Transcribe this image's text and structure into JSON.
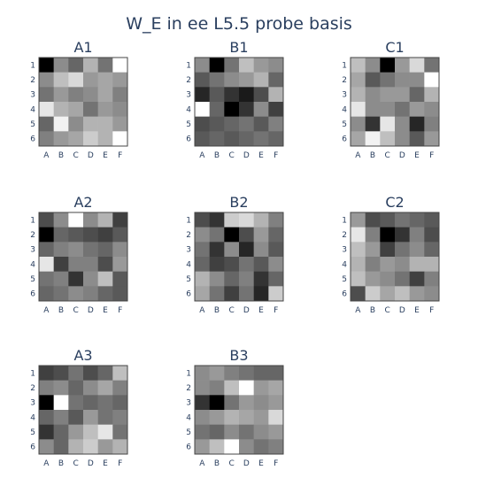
{
  "title": "W_E in ee L5.5 probe basis",
  "chart_data": [
    {
      "type": "heatmap",
      "title": "A1",
      "x_categories": [
        "A",
        "B",
        "C",
        "D",
        "E",
        "F"
      ],
      "y_categories": [
        "1",
        "2",
        "3",
        "4",
        "5",
        "6"
      ],
      "values": [
        [
          0.0,
          0.55,
          0.4,
          0.7,
          0.45,
          1.0
        ],
        [
          0.55,
          0.75,
          0.85,
          0.6,
          0.65,
          0.6
        ],
        [
          0.45,
          0.6,
          0.5,
          0.55,
          0.65,
          0.5
        ],
        [
          0.9,
          0.7,
          0.65,
          0.45,
          0.6,
          0.55
        ],
        [
          0.4,
          0.95,
          0.55,
          0.7,
          0.7,
          0.6
        ],
        [
          0.5,
          0.6,
          0.65,
          0.8,
          0.7,
          1.0
        ]
      ]
    },
    {
      "type": "heatmap",
      "title": "B1",
      "x_categories": [
        "A",
        "B",
        "C",
        "D",
        "E",
        "F"
      ],
      "y_categories": [
        "1",
        "2",
        "3",
        "4",
        "5",
        "6"
      ],
      "values": [
        [
          0.55,
          0.0,
          0.45,
          0.75,
          0.6,
          0.55
        ],
        [
          0.35,
          0.45,
          0.55,
          0.6,
          0.7,
          0.4
        ],
        [
          0.15,
          0.35,
          0.2,
          0.1,
          0.3,
          0.7
        ],
        [
          1.0,
          0.4,
          0.0,
          0.2,
          0.55,
          0.25
        ],
        [
          0.3,
          0.35,
          0.4,
          0.45,
          0.35,
          0.5
        ],
        [
          0.35,
          0.4,
          0.35,
          0.4,
          0.45,
          0.4
        ]
      ]
    },
    {
      "type": "heatmap",
      "title": "C1",
      "x_categories": [
        "A",
        "B",
        "C",
        "D",
        "E",
        "F"
      ],
      "y_categories": [
        "1",
        "2",
        "3",
        "4",
        "5",
        "6"
      ],
      "values": [
        [
          0.75,
          0.55,
          0.0,
          0.6,
          0.85,
          0.45
        ],
        [
          0.65,
          0.35,
          0.45,
          0.55,
          0.55,
          1.0
        ],
        [
          0.7,
          0.55,
          0.6,
          0.6,
          0.4,
          0.7
        ],
        [
          0.9,
          0.55,
          0.55,
          0.45,
          0.6,
          0.55
        ],
        [
          0.55,
          0.2,
          0.9,
          0.55,
          0.15,
          0.5
        ],
        [
          0.65,
          0.95,
          0.75,
          0.55,
          0.35,
          0.6
        ]
      ]
    },
    {
      "type": "heatmap",
      "title": "A2",
      "x_categories": [
        "A",
        "B",
        "C",
        "D",
        "E",
        "F"
      ],
      "y_categories": [
        "1",
        "2",
        "3",
        "4",
        "5",
        "6"
      ],
      "values": [
        [
          0.3,
          0.55,
          1.0,
          0.55,
          0.7,
          0.25
        ],
        [
          0.0,
          0.4,
          0.35,
          0.3,
          0.25,
          0.35
        ],
        [
          0.4,
          0.5,
          0.55,
          0.45,
          0.4,
          0.55
        ],
        [
          0.9,
          0.25,
          0.5,
          0.5,
          0.3,
          0.6
        ],
        [
          0.45,
          0.5,
          0.2,
          0.55,
          0.75,
          0.35
        ],
        [
          0.4,
          0.45,
          0.55,
          0.5,
          0.4,
          0.35
        ]
      ]
    },
    {
      "type": "heatmap",
      "title": "B2",
      "x_categories": [
        "A",
        "B",
        "C",
        "D",
        "E",
        "F"
      ],
      "y_categories": [
        "1",
        "2",
        "3",
        "4",
        "5",
        "6"
      ],
      "values": [
        [
          0.3,
          0.2,
          0.8,
          0.85,
          0.7,
          0.5
        ],
        [
          0.55,
          0.45,
          0.0,
          0.3,
          0.6,
          0.4
        ],
        [
          0.45,
          0.2,
          0.55,
          0.15,
          0.55,
          0.35
        ],
        [
          0.4,
          0.25,
          0.3,
          0.45,
          0.35,
          0.55
        ],
        [
          0.7,
          0.55,
          0.4,
          0.5,
          0.2,
          0.4
        ],
        [
          0.65,
          0.45,
          0.25,
          0.45,
          0.15,
          0.8
        ]
      ]
    },
    {
      "type": "heatmap",
      "title": "C2",
      "x_categories": [
        "A",
        "B",
        "C",
        "D",
        "E",
        "F"
      ],
      "y_categories": [
        "1",
        "2",
        "3",
        "4",
        "5",
        "6"
      ],
      "values": [
        [
          0.6,
          0.3,
          0.35,
          0.45,
          0.4,
          0.35
        ],
        [
          0.9,
          0.5,
          0.0,
          0.2,
          0.5,
          0.3
        ],
        [
          0.75,
          0.6,
          0.25,
          0.45,
          0.55,
          0.4
        ],
        [
          0.7,
          0.5,
          0.6,
          0.55,
          0.7,
          0.7
        ],
        [
          0.75,
          0.6,
          0.55,
          0.45,
          0.25,
          0.5
        ],
        [
          0.3,
          0.8,
          0.65,
          0.75,
          0.6,
          0.55
        ]
      ]
    },
    {
      "type": "heatmap",
      "title": "A3",
      "x_categories": [
        "A",
        "B",
        "C",
        "D",
        "E",
        "F"
      ],
      "y_categories": [
        "1",
        "2",
        "3",
        "4",
        "5",
        "6"
      ],
      "values": [
        [
          0.25,
          0.3,
          0.45,
          0.3,
          0.4,
          0.75
        ],
        [
          0.5,
          0.55,
          0.4,
          0.55,
          0.65,
          0.5
        ],
        [
          0.0,
          1.0,
          0.45,
          0.4,
          0.45,
          0.4
        ],
        [
          0.4,
          0.5,
          0.35,
          0.6,
          0.45,
          0.5
        ],
        [
          0.2,
          0.4,
          0.6,
          0.75,
          0.9,
          0.45
        ],
        [
          0.55,
          0.4,
          0.7,
          0.8,
          0.6,
          0.7
        ]
      ]
    },
    {
      "type": "heatmap",
      "title": "B3",
      "x_categories": [
        "A",
        "B",
        "C",
        "D",
        "E",
        "F"
      ],
      "y_categories": [
        "1",
        "2",
        "3",
        "4",
        "5",
        "6"
      ],
      "values": [
        [
          0.55,
          0.6,
          0.5,
          0.45,
          0.4,
          0.4
        ],
        [
          0.55,
          0.5,
          0.75,
          1.0,
          0.6,
          0.65
        ],
        [
          0.2,
          0.0,
          0.45,
          0.6,
          0.55,
          0.6
        ],
        [
          0.55,
          0.6,
          0.7,
          0.65,
          0.6,
          0.85
        ],
        [
          0.45,
          0.4,
          0.55,
          0.45,
          0.55,
          0.6
        ],
        [
          0.6,
          0.75,
          1.0,
          0.55,
          0.45,
          0.5
        ]
      ]
    }
  ]
}
